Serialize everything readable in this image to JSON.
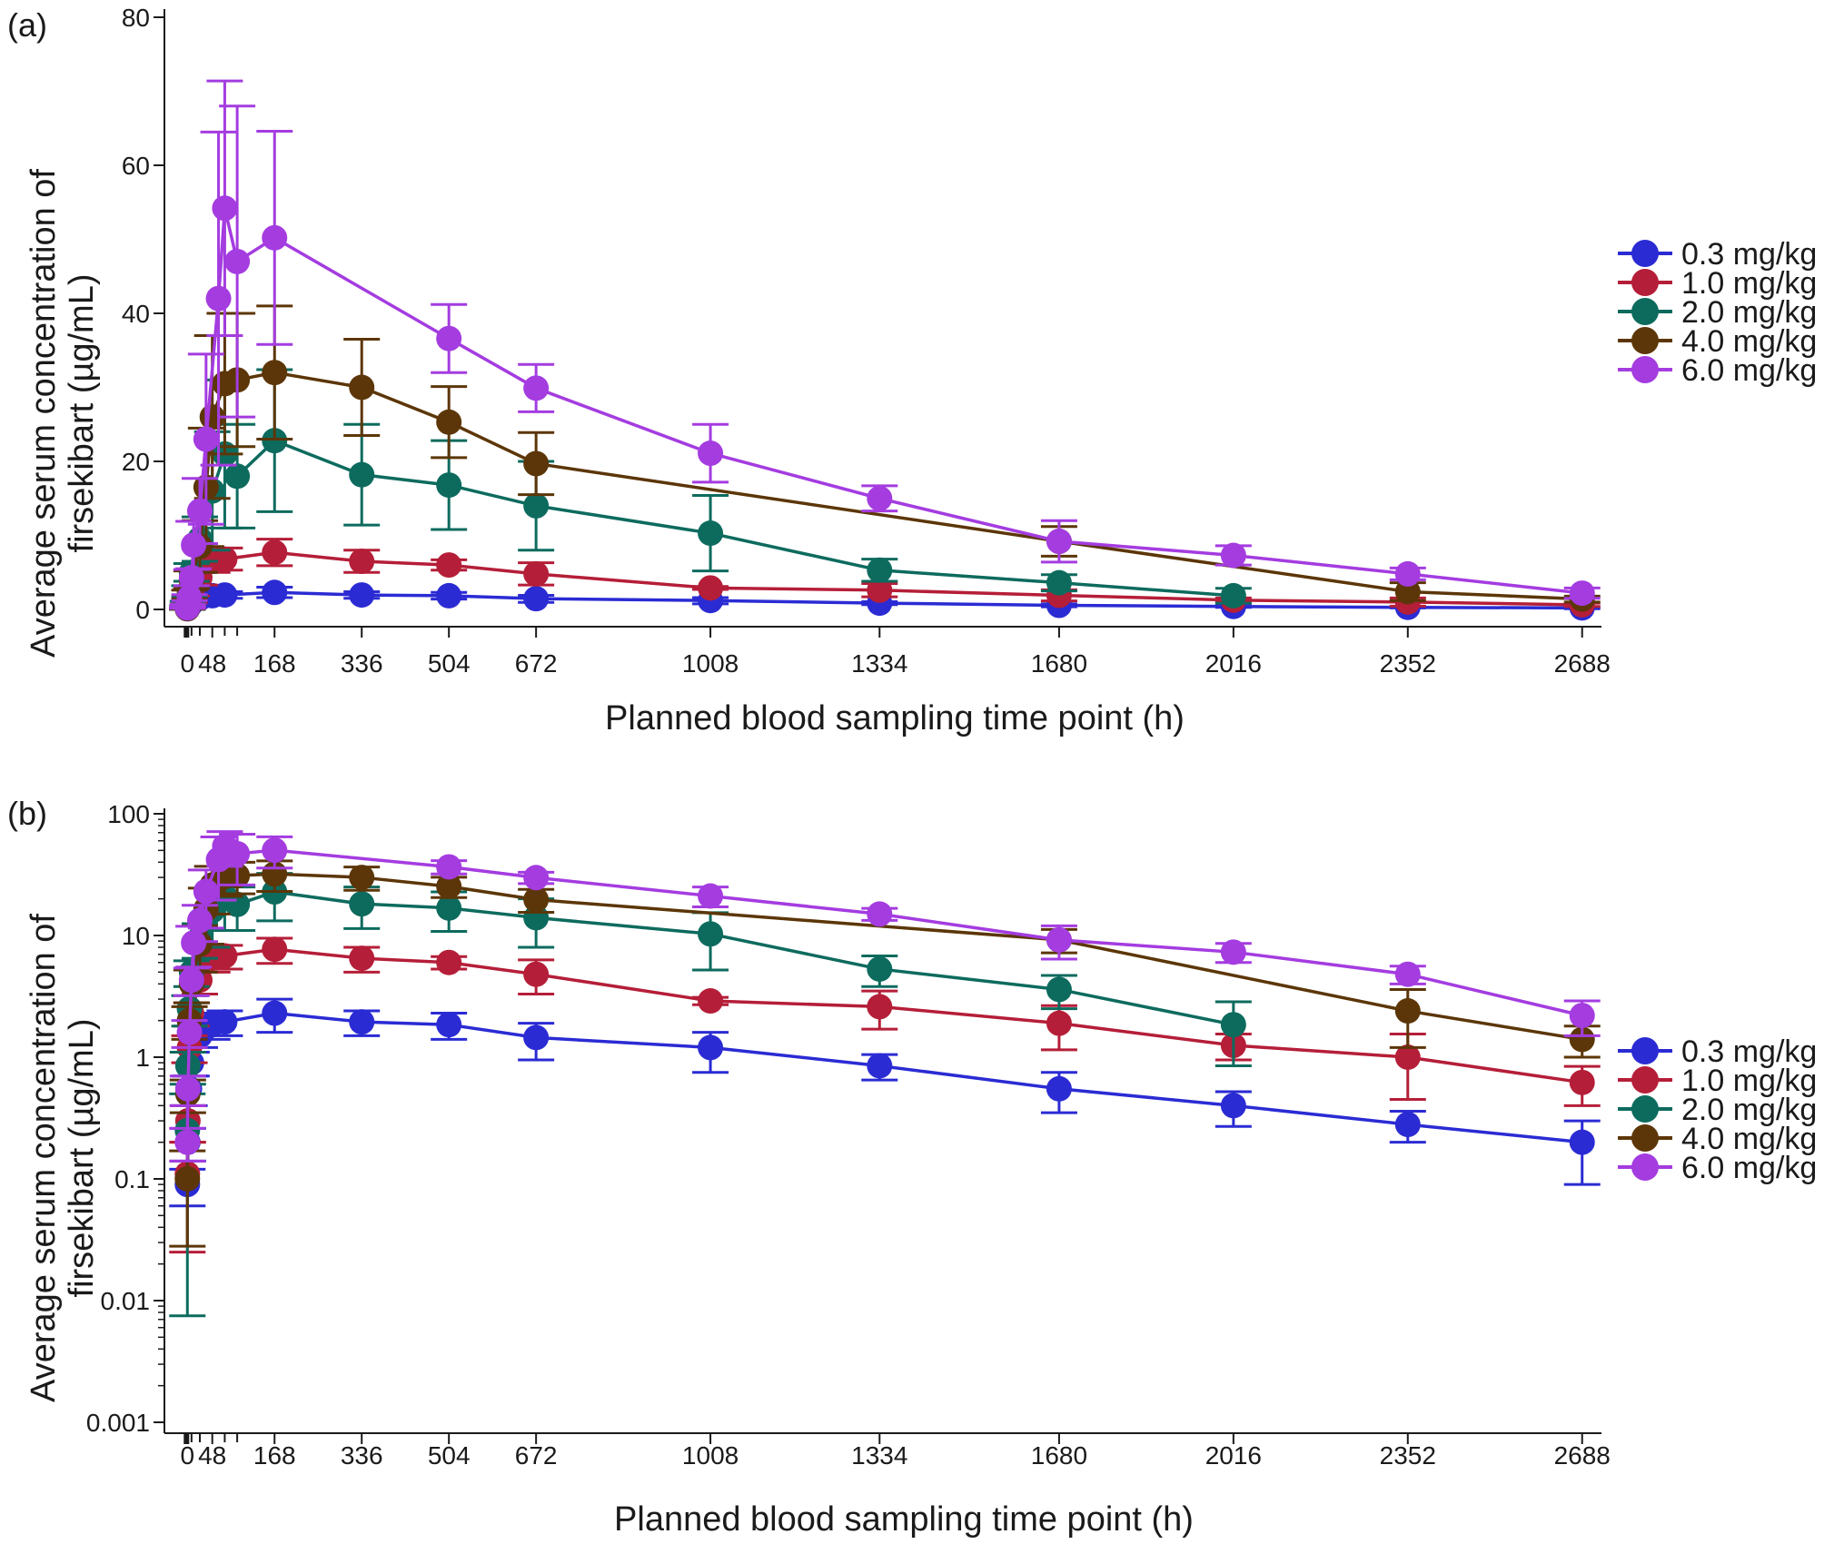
{
  "figure": {
    "panel_a_tag": "(a)",
    "panel_b_tag": "(b)"
  },
  "chart_data": [
    {
      "type": "line",
      "panel": "(a)",
      "scale": "linear",
      "xlabel": "Planned blood sampling time point (h)",
      "ylabel_line1": "Average serum concentration of",
      "ylabel_line2": "firsekibart (µg/mL)",
      "xlim": [
        -40,
        2745
      ],
      "ylim": [
        -2,
        81
      ],
      "x_ticks": [
        0,
        48,
        168,
        336,
        504,
        672,
        1008,
        1334,
        1680,
        2016,
        2352,
        2688
      ],
      "y_ticks": [
        0,
        20,
        40,
        60,
        80
      ],
      "y_tick_labels": [
        "0",
        "20",
        "40",
        "60",
        "80"
      ],
      "series": [
        {
          "name": "0.3 mg/kg",
          "color": "#2b2bd4",
          "points": [
            [
              0,
              0.09,
              0.06,
              0.12
            ],
            [
              1,
              0.2,
              0.14,
              0.26
            ],
            [
              4,
              0.55,
              0.4,
              0.7
            ],
            [
              8,
              0.9,
              0.7,
              1.1
            ],
            [
              24,
              1.5,
              1.2,
              1.8
            ],
            [
              48,
              1.85,
              1.4,
              2.3
            ],
            [
              72,
              1.95,
              1.5,
              2.4
            ],
            [
              168,
              2.3,
              1.6,
              3.0
            ],
            [
              336,
              1.95,
              1.5,
              2.4
            ],
            [
              504,
              1.85,
              1.4,
              2.3
            ],
            [
              672,
              1.45,
              0.95,
              1.9
            ],
            [
              1008,
              1.2,
              0.75,
              1.6
            ],
            [
              1334,
              0.85,
              0.65,
              1.05
            ],
            [
              1680,
              0.55,
              0.35,
              0.75
            ],
            [
              2016,
              0.4,
              0.27,
              0.52
            ],
            [
              2352,
              0.28,
              0.2,
              0.36
            ],
            [
              2688,
              0.2,
              0.09,
              0.3
            ]
          ]
        },
        {
          "name": "1.0 mg/kg",
          "color": "#b51e38",
          "points": [
            [
              0,
              0.11,
              0.025,
              0.2
            ],
            [
              1,
              0.3,
              0.2,
              0.4
            ],
            [
              4,
              1.2,
              0.9,
              1.5
            ],
            [
              8,
              2.3,
              1.8,
              2.8
            ],
            [
              24,
              4.3,
              3.3,
              5.3
            ],
            [
              48,
              6.5,
              5.0,
              8.0
            ],
            [
              72,
              6.8,
              5.3,
              8.3
            ],
            [
              168,
              7.7,
              5.9,
              9.5
            ],
            [
              336,
              6.5,
              5.0,
              8.0
            ],
            [
              504,
              6.0,
              5.3,
              6.7
            ],
            [
              672,
              4.8,
              3.3,
              6.3
            ],
            [
              1008,
              2.9,
              2.7,
              3.1
            ],
            [
              1334,
              2.6,
              1.7,
              3.5
            ],
            [
              1680,
              1.9,
              1.15,
              2.65
            ],
            [
              2016,
              1.25,
              0.95,
              1.55
            ],
            [
              2352,
              1.0,
              0.45,
              1.55
            ],
            [
              2688,
              0.62,
              0.4,
              0.84
            ]
          ]
        },
        {
          "name": "2.0 mg/kg",
          "color": "#0d6b5e",
          "points": [
            [
              0,
              0.25,
              0.0075,
              0.5
            ],
            [
              1,
              0.85,
              0.6,
              1.1
            ],
            [
              4,
              2.5,
              1.8,
              3.2
            ],
            [
              8,
              5.0,
              3.8,
              6.2
            ],
            [
              24,
              9.5,
              6.5,
              12.5
            ],
            [
              48,
              16.0,
              8.0,
              24.0
            ],
            [
              72,
              21.0,
              11.0,
              31.0
            ],
            [
              96,
              18.0,
              11.0,
              25.0
            ],
            [
              168,
              22.8,
              13.2,
              32.4
            ],
            [
              336,
              18.2,
              11.4,
              25.0
            ],
            [
              504,
              16.8,
              10.8,
              22.8
            ],
            [
              672,
              14.0,
              8.0,
              20.0
            ],
            [
              1008,
              10.3,
              5.2,
              15.4
            ],
            [
              1334,
              5.3,
              3.8,
              6.8
            ],
            [
              1680,
              3.6,
              2.5,
              4.7
            ],
            [
              2016,
              1.85,
              0.85,
              2.85
            ]
          ]
        },
        {
          "name": "4.0 mg/kg",
          "color": "#5c3608",
          "points": [
            [
              0,
              0.1,
              0.028,
              0.17
            ],
            [
              1,
              0.5,
              0.35,
              0.65
            ],
            [
              4,
              2.0,
              1.4,
              2.6
            ],
            [
              8,
              4.0,
              2.8,
              5.2
            ],
            [
              24,
              8.5,
              5.0,
              12.0
            ],
            [
              36,
              16.5,
              8.5,
              24.5
            ],
            [
              48,
              26.0,
              15.0,
              37.0
            ],
            [
              72,
              30.5,
              21.0,
              40.0
            ],
            [
              96,
              31.0,
              22.0,
              40.0
            ],
            [
              168,
              32.0,
              23.0,
              41.0
            ],
            [
              336,
              30.0,
              23.5,
              36.5
            ],
            [
              504,
              25.3,
              20.5,
              30.1
            ],
            [
              672,
              19.7,
              15.5,
              23.9
            ],
            [
              1680,
              9.2,
              7.2,
              11.2
            ],
            [
              2352,
              2.4,
              1.2,
              3.6
            ],
            [
              2688,
              1.4,
              1.0,
              1.8
            ]
          ]
        },
        {
          "name": "6.0 mg/kg",
          "color": "#a43ce0",
          "points": [
            [
              0,
              0.2,
              0.14,
              0.26
            ],
            [
              1,
              0.55,
              0.4,
              0.7
            ],
            [
              4,
              1.6,
              1.2,
              2.0
            ],
            [
              8,
              4.3,
              3.2,
              5.4
            ],
            [
              12,
              8.7,
              5.5,
              11.9
            ],
            [
              24,
              13.3,
              8.9,
              17.7
            ],
            [
              36,
              23.0,
              11.5,
              34.5
            ],
            [
              60,
              42.0,
              19.5,
              64.5
            ],
            [
              72,
              54.2,
              37.0,
              71.4
            ],
            [
              96,
              47.0,
              26.0,
              68.0
            ],
            [
              168,
              50.2,
              35.8,
              64.6
            ],
            [
              504,
              36.6,
              32.0,
              41.2
            ],
            [
              672,
              29.9,
              26.7,
              33.1
            ],
            [
              1008,
              21.1,
              17.2,
              25.0
            ],
            [
              1334,
              15.0,
              13.3,
              16.7
            ],
            [
              1680,
              9.2,
              6.4,
              12.0
            ],
            [
              2016,
              7.3,
              6.0,
              8.6
            ],
            [
              2352,
              4.8,
              4.0,
              5.6
            ],
            [
              2688,
              2.2,
              1.5,
              2.9
            ]
          ]
        }
      ]
    },
    {
      "type": "line",
      "panel": "(b)",
      "scale": "log",
      "xlabel": "Planned blood sampling time point (h)",
      "ylabel_line1": "Average serum concentration of",
      "ylabel_line2": "firsekibart (µg/mL)",
      "xlim": [
        -40,
        2745
      ],
      "ylim": [
        0.001,
        100
      ],
      "x_ticks": [
        0,
        48,
        168,
        336,
        504,
        672,
        1008,
        1334,
        1680,
        2016,
        2352,
        2688
      ],
      "y_ticks": [
        0.001,
        0.01,
        0.1,
        1,
        10,
        100
      ],
      "y_tick_labels": [
        "0.001",
        "0.01",
        "0.1",
        "1",
        "10",
        "100"
      ],
      "series_ref": "same data as panel (a)"
    }
  ],
  "legend": [
    {
      "label": "0.3 mg/kg",
      "color": "#2b2bd4"
    },
    {
      "label": "1.0 mg/kg",
      "color": "#b51e38"
    },
    {
      "label": "2.0 mg/kg",
      "color": "#0d6b5e"
    },
    {
      "label": "4.0 mg/kg",
      "color": "#5c3608"
    },
    {
      "label": "6.0 mg/kg",
      "color": "#a43ce0"
    }
  ]
}
